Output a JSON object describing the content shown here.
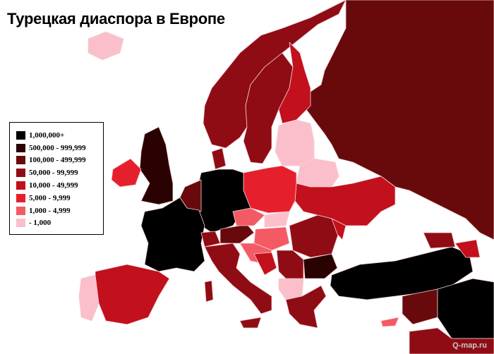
{
  "title": "Турецкая диаспора в Европе",
  "legend": {
    "items": [
      {
        "label": "1,000,000+",
        "color": "#000000"
      },
      {
        "label": "500,000 - 999,999",
        "color": "#2a0202"
      },
      {
        "label": "100,000 - 499,999",
        "color": "#680a0c"
      },
      {
        "label": "50,000 - 99,999",
        "color": "#8f0c14"
      },
      {
        "label": "10,000 - 49,999",
        "color": "#c2101c"
      },
      {
        "label": "5,000 - 9,999",
        "color": "#e5202c"
      },
      {
        "label": "1,000 - 4,999",
        "color": "#f45a64"
      },
      {
        "label": "- 1,000",
        "color": "#fbbfcc"
      }
    ]
  },
  "watermark": "Q-map.ru",
  "map": {
    "sea_color": "#ffffff",
    "border_color": "#f3d0d4"
  }
}
